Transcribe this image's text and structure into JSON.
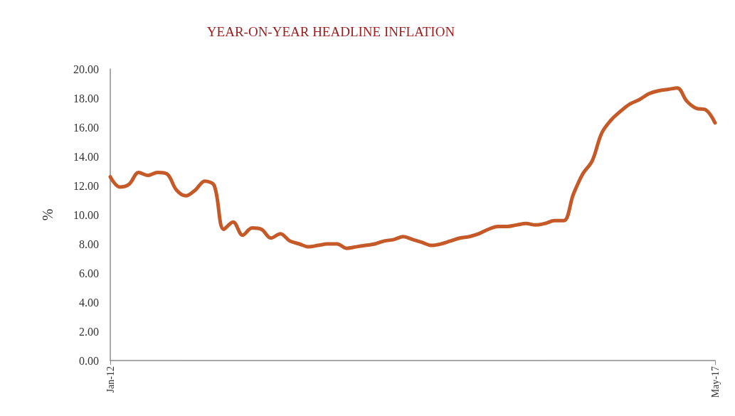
{
  "chart_data": {
    "type": "line",
    "title": "YEAR-ON-YEAR HEADLINE INFLATION",
    "ylabel": "%",
    "categories": [
      "Jan-12",
      null,
      null,
      null,
      null,
      null,
      null,
      null,
      null,
      null,
      null,
      null,
      null,
      null,
      null,
      null,
      null,
      null,
      null,
      null,
      null,
      null,
      null,
      null,
      null,
      null,
      null,
      null,
      null,
      null,
      null,
      null,
      null,
      null,
      null,
      null,
      null,
      null,
      null,
      null,
      null,
      null,
      null,
      null,
      null,
      null,
      null,
      null,
      null,
      null,
      null,
      null,
      null,
      null,
      null,
      null,
      null,
      null,
      null,
      null,
      null,
      null,
      null,
      null,
      "May-17"
    ],
    "series": [
      {
        "color": "#c55a28",
        "values": [
          12.6,
          11.9,
          12.1,
          12.9,
          12.7,
          12.9,
          12.8,
          11.7,
          11.3,
          11.7,
          12.3,
          12.0,
          9.0,
          9.5,
          8.6,
          9.1,
          9.0,
          8.4,
          8.7,
          8.2,
          8.0,
          7.8,
          7.9,
          8.0,
          8.0,
          7.7,
          7.8,
          7.9,
          8.0,
          8.2,
          8.3,
          8.5,
          8.3,
          8.1,
          7.9,
          8.0,
          8.2,
          8.4,
          8.5,
          8.7,
          9.0,
          9.2,
          9.2,
          9.3,
          9.4,
          9.3,
          9.4,
          9.6,
          9.6,
          11.4,
          12.8,
          13.7,
          15.6,
          16.5,
          17.1,
          17.6,
          17.9,
          18.3,
          18.5,
          18.6,
          18.7,
          17.8,
          17.3,
          17.2,
          16.3
        ]
      }
    ],
    "ylim": [
      0,
      20
    ],
    "yticks": [
      {
        "value": 0,
        "label": "0.00"
      },
      {
        "value": 2,
        "label": "2.00"
      },
      {
        "value": 4,
        "label": "4.00"
      },
      {
        "value": 6,
        "label": "6.00"
      },
      {
        "value": 8,
        "label": "8.00"
      },
      {
        "value": 10,
        "label": "10.00"
      },
      {
        "value": 12,
        "label": "12.00"
      },
      {
        "value": 14,
        "label": "14.00"
      },
      {
        "value": 16,
        "label": "16.00"
      },
      {
        "value": 18,
        "label": "18.00"
      },
      {
        "value": 20,
        "label": "20.00"
      }
    ],
    "grid": false,
    "marker": "none",
    "line_style": "solid"
  }
}
